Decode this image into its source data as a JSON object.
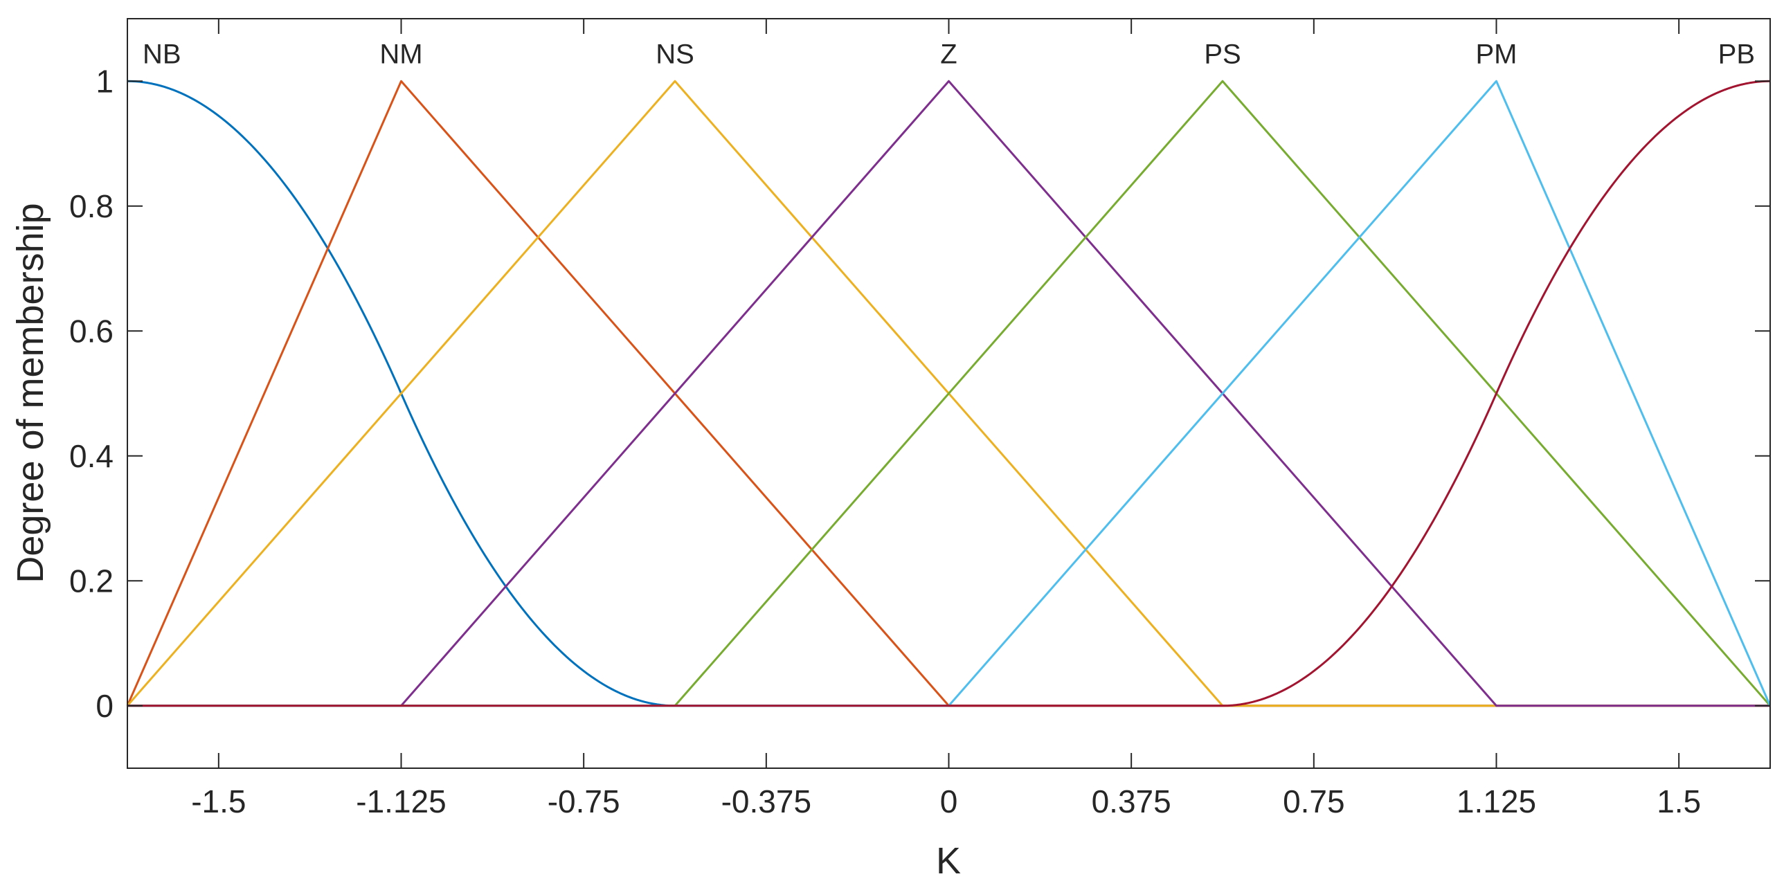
{
  "chart_data": {
    "type": "line",
    "title": "",
    "xlabel": "K",
    "ylabel": "Degree of membership",
    "xlim": [
      -1.6875,
      1.6875
    ],
    "ylim": [
      -0.1,
      1.1
    ],
    "xticks": [
      -1.5,
      -1.125,
      -0.75,
      -0.375,
      0,
      0.375,
      0.75,
      1.125,
      1.5
    ],
    "xtick_labels": [
      "-1.5",
      "-1.125",
      "-0.75",
      "-0.375",
      "0",
      "0.375",
      "0.75",
      "1.125",
      "1.5"
    ],
    "yticks": [
      0,
      0.2,
      0.4,
      0.6,
      0.8,
      1
    ],
    "ytick_labels": [
      "0",
      "0.2",
      "0.4",
      "0.6",
      "0.8",
      "1"
    ],
    "grid": false,
    "legend": "none",
    "series": [
      {
        "name": "NB",
        "mf": "zmf",
        "params": [
          -1.6875,
          -0.5625
        ],
        "color": "#0072bd",
        "peak_x": -1.6875
      },
      {
        "name": "NM",
        "mf": "trimf",
        "params": [
          -1.6875,
          -1.125,
          0
        ],
        "color": "#d95319",
        "peak_x": -1.125
      },
      {
        "name": "NS",
        "mf": "trimf",
        "params": [
          -1.6875,
          -0.5625,
          0.5625
        ],
        "color": "#edb120",
        "peak_x": -0.5625
      },
      {
        "name": "Z",
        "mf": "trimf",
        "params": [
          -1.125,
          0,
          1.125
        ],
        "color": "#7e2f8e",
        "peak_x": 0
      },
      {
        "name": "PS",
        "mf": "trimf",
        "params": [
          -0.5625,
          0.5625,
          1.6875
        ],
        "color": "#77ac30",
        "peak_x": 0.5625
      },
      {
        "name": "PM",
        "mf": "trimf",
        "params": [
          0,
          1.125,
          1.6875
        ],
        "color": "#4dbeee",
        "peak_x": 1.125
      },
      {
        "name": "PB",
        "mf": "smf",
        "params": [
          0.5625,
          1.6875
        ],
        "color": "#a2142f",
        "peak_x": 1.6875
      }
    ]
  }
}
